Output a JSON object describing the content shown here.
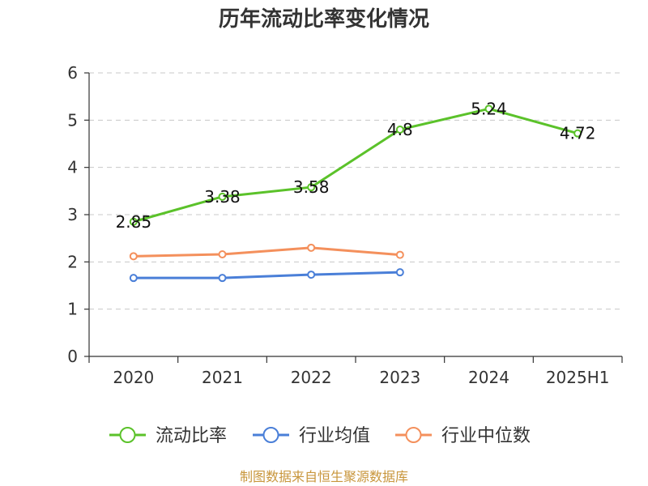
{
  "chart_data": {
    "type": "line",
    "title": "历年流动比率变化情况",
    "categories": [
      "2020",
      "2021",
      "2022",
      "2023",
      "2024",
      "2025H1"
    ],
    "series": [
      {
        "name": "流动比率",
        "values": [
          2.85,
          3.38,
          3.58,
          4.8,
          5.24,
          4.72
        ],
        "color": "#5bc22a",
        "show_labels": true
      },
      {
        "name": "行业均值",
        "values": [
          1.66,
          1.66,
          1.73,
          1.78,
          null,
          null
        ],
        "color": "#4a7fd8",
        "show_labels": false
      },
      {
        "name": "行业中位数",
        "values": [
          2.12,
          2.16,
          2.3,
          2.15,
          null,
          null
        ],
        "color": "#f4905c",
        "show_labels": false
      }
    ],
    "xlabel": "",
    "ylabel": "",
    "ylim": [
      0,
      6
    ],
    "yticks": [
      0,
      1,
      2,
      3,
      4,
      5,
      6
    ],
    "grid": true,
    "legend": "bottom-center"
  },
  "source_note": "制图数据来自恒生聚源数据库"
}
